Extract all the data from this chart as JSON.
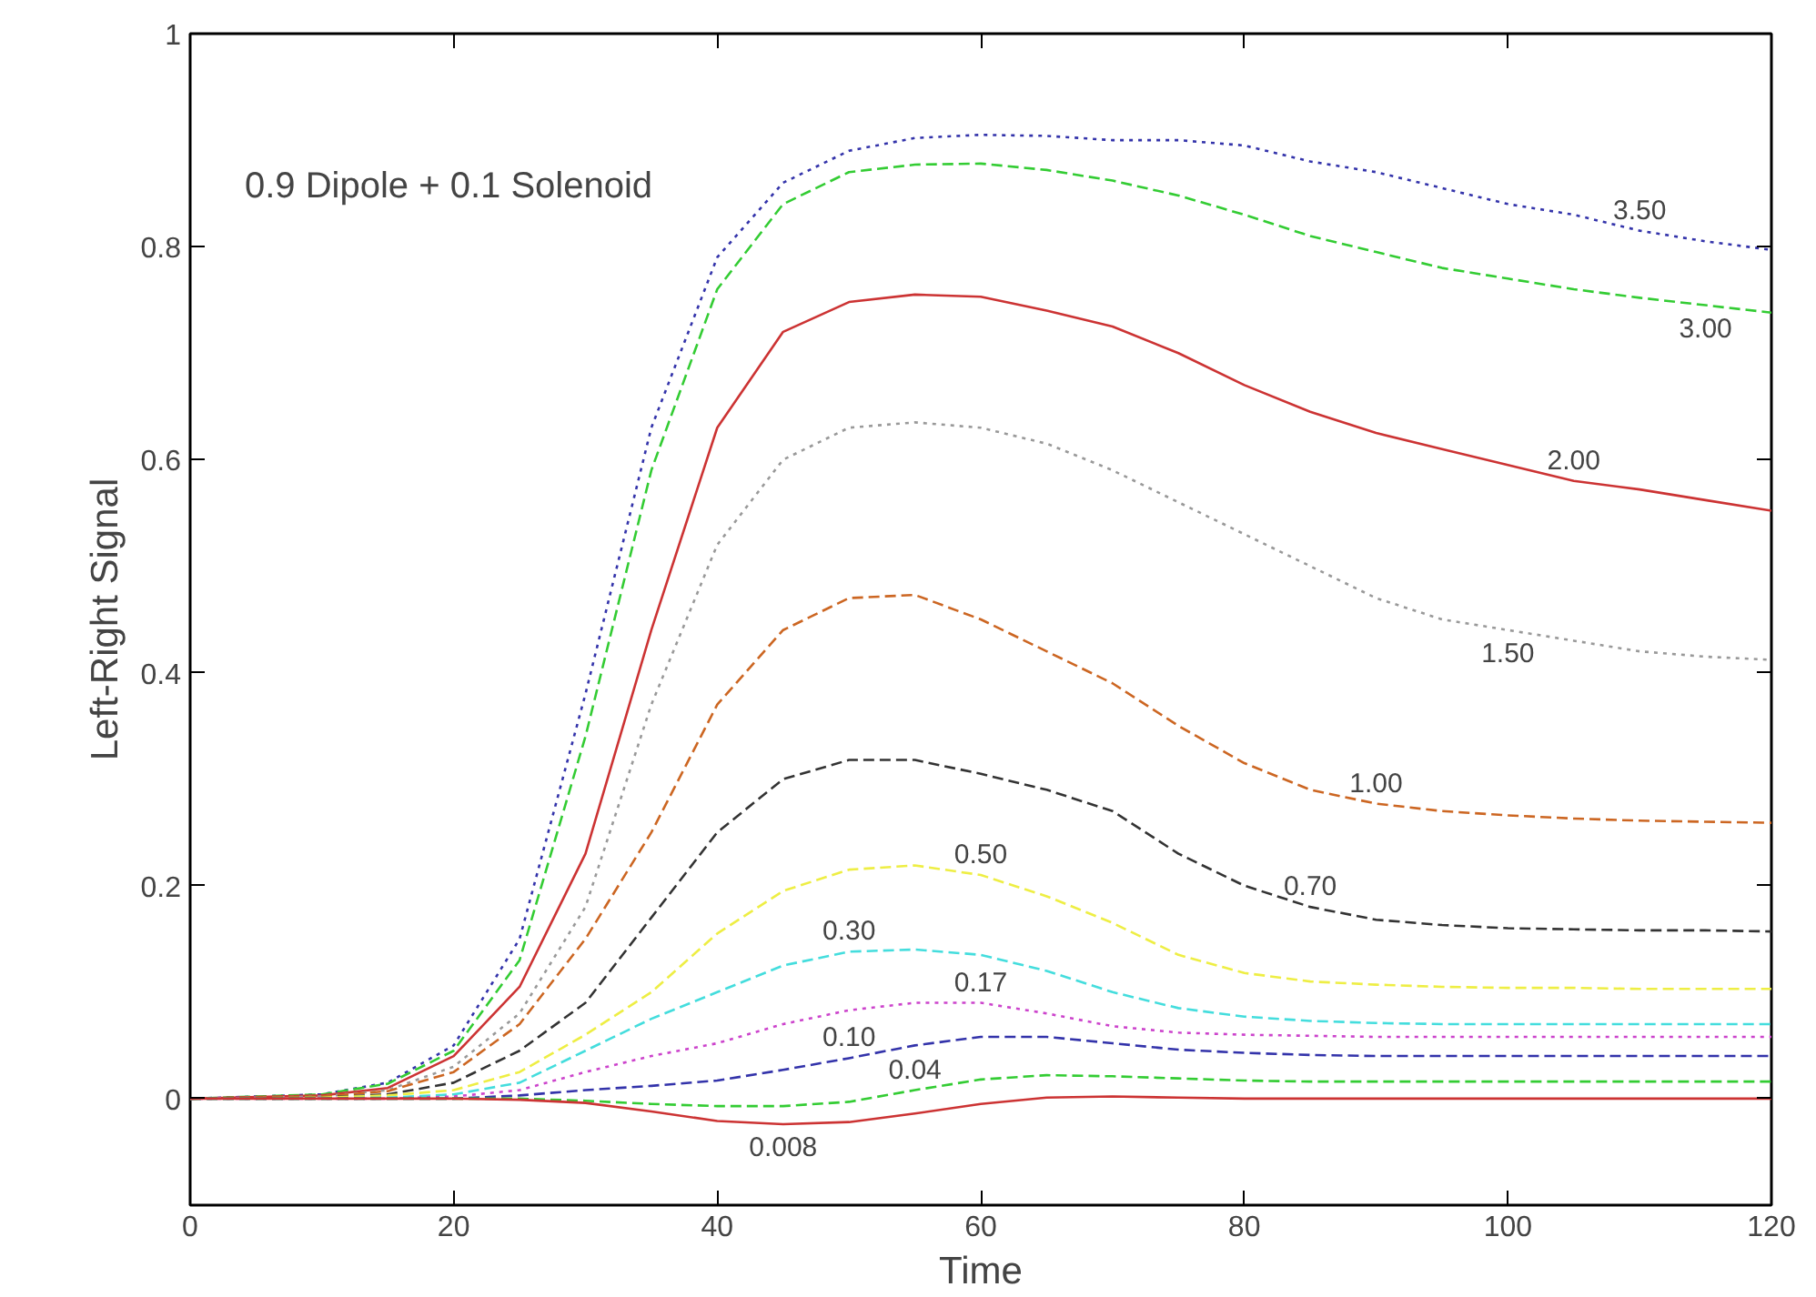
{
  "chart_data": {
    "type": "line",
    "xlabel": "Time",
    "ylabel": "Left-Right Signal",
    "x": [
      0,
      10,
      15,
      20,
      25,
      30,
      35,
      40,
      45,
      50,
      55,
      60,
      65,
      70,
      75,
      80,
      85,
      90,
      95,
      100,
      105,
      110,
      115,
      120
    ],
    "xlim": [
      0,
      120
    ],
    "ylim": [
      -0.1,
      1
    ],
    "xticks": [
      0,
      20,
      40,
      60,
      80,
      100,
      120
    ],
    "yticks": [
      0,
      0.2,
      0.4,
      0.6,
      0.8,
      1
    ],
    "grid": false,
    "marker": "none",
    "series": [
      {
        "color": "#3333aa",
        "line_style": "dotted",
        "values": [
          0,
          0.004,
          0.015,
          0.05,
          0.15,
          0.38,
          0.63,
          0.79,
          0.86,
          0.89,
          0.902,
          0.905,
          0.904,
          0.9,
          0.9,
          0.895,
          0.88,
          0.87,
          0.855,
          0.84,
          0.83,
          0.815,
          0.805,
          0.797
        ]
      },
      {
        "color": "#33cc33",
        "line_style": "dashed",
        "values": [
          0,
          0.004,
          0.014,
          0.045,
          0.13,
          0.34,
          0.59,
          0.76,
          0.84,
          0.87,
          0.877,
          0.878,
          0.872,
          0.862,
          0.848,
          0.83,
          0.81,
          0.795,
          0.78,
          0.77,
          0.76,
          0.752,
          0.745,
          0.738
        ]
      },
      {
        "color": "#cc3333",
        "line_style": "solid",
        "values": [
          0,
          0.003,
          0.01,
          0.04,
          0.105,
          0.23,
          0.44,
          0.63,
          0.72,
          0.748,
          0.755,
          0.753,
          0.74,
          0.725,
          0.7,
          0.67,
          0.645,
          0.625,
          0.61,
          0.595,
          0.58,
          0.572,
          0.562,
          0.552
        ]
      },
      {
        "color": "#999999",
        "line_style": "dotted",
        "values": [
          0,
          0.002,
          0.008,
          0.03,
          0.08,
          0.18,
          0.37,
          0.52,
          0.6,
          0.63,
          0.635,
          0.63,
          0.615,
          0.59,
          0.56,
          0.53,
          0.5,
          0.47,
          0.45,
          0.44,
          0.43,
          0.42,
          0.415,
          0.412
        ]
      },
      {
        "color": "#cc6622",
        "line_style": "dashed",
        "values": [
          0,
          0.002,
          0.007,
          0.025,
          0.07,
          0.15,
          0.25,
          0.37,
          0.44,
          0.47,
          0.473,
          0.45,
          0.42,
          0.39,
          0.35,
          0.315,
          0.29,
          0.277,
          0.27,
          0.266,
          0.263,
          0.261,
          0.26,
          0.259
        ]
      },
      {
        "color": "#333333",
        "line_style": "dashed",
        "values": [
          0,
          0.001,
          0.004,
          0.015,
          0.045,
          0.09,
          0.17,
          0.25,
          0.3,
          0.318,
          0.318,
          0.305,
          0.29,
          0.27,
          0.23,
          0.2,
          0.18,
          0.168,
          0.163,
          0.16,
          0.159,
          0.158,
          0.158,
          0.157
        ]
      },
      {
        "color": "#eeee44",
        "line_style": "dashed",
        "values": [
          0,
          0.001,
          0.003,
          0.008,
          0.025,
          0.06,
          0.1,
          0.155,
          0.195,
          0.215,
          0.219,
          0.21,
          0.19,
          0.165,
          0.135,
          0.118,
          0.11,
          0.107,
          0.105,
          0.104,
          0.104,
          0.103,
          0.103,
          0.103
        ]
      },
      {
        "color": "#44dddd",
        "line_style": "dashed",
        "values": [
          0,
          0,
          0.001,
          0.004,
          0.015,
          0.045,
          0.075,
          0.1,
          0.125,
          0.138,
          0.14,
          0.135,
          0.12,
          0.1,
          0.085,
          0.077,
          0.073,
          0.071,
          0.07,
          0.07,
          0.07,
          0.07,
          0.07,
          0.07
        ]
      },
      {
        "color": "#cc44cc",
        "line_style": "dotted",
        "values": [
          0,
          0,
          0,
          0.002,
          0.008,
          0.025,
          0.04,
          0.052,
          0.07,
          0.083,
          0.09,
          0.09,
          0.08,
          0.068,
          0.062,
          0.06,
          0.059,
          0.058,
          0.058,
          0.058,
          0.058,
          0.058,
          0.058,
          0.058
        ]
      },
      {
        "color": "#3333aa",
        "line_style": "dashed",
        "values": [
          0,
          0,
          0,
          0,
          0.003,
          0.008,
          0.012,
          0.017,
          0.027,
          0.038,
          0.05,
          0.058,
          0.058,
          0.052,
          0.046,
          0.043,
          0.041,
          0.04,
          0.04,
          0.04,
          0.04,
          0.04,
          0.04,
          0.04
        ]
      },
      {
        "color": "#33cc33",
        "line_style": "dashed",
        "values": [
          0,
          0,
          0,
          0,
          0,
          -0.002,
          -0.005,
          -0.007,
          -0.007,
          -0.003,
          0.008,
          0.018,
          0.022,
          0.021,
          0.019,
          0.017,
          0.016,
          0.016,
          0.016,
          0.016,
          0.016,
          0.016,
          0.016,
          0.016
        ]
      },
      {
        "color": "#cc3333",
        "line_style": "solid",
        "values": [
          0,
          0,
          0,
          0,
          -0.001,
          -0.004,
          -0.012,
          -0.021,
          -0.024,
          -0.022,
          -0.014,
          -0.005,
          0.001,
          0.002,
          0.001,
          0,
          0,
          0,
          0,
          0,
          0,
          0,
          0,
          0
        ]
      }
    ],
    "annotations": [
      "0.9 Dipole + 0.1 Solenoid",
      {
        "text": "3.50",
        "x": 110,
        "y": 0.815
      },
      {
        "text": "3.00",
        "x": 115,
        "y": 0.745
      },
      {
        "text": "2.00",
        "x": 105,
        "y": 0.58
      },
      {
        "text": "1.50",
        "x": 100,
        "y": 0.44
      },
      {
        "text": "1.00",
        "x": 90,
        "y": 0.277
      },
      {
        "text": "0.70",
        "x": 85,
        "y": 0.18
      },
      {
        "text": "0.50",
        "x": 60,
        "y": 0.21
      },
      {
        "text": "0.30",
        "x": 50,
        "y": 0.138
      },
      {
        "text": "0.17",
        "x": 60,
        "y": 0.09
      },
      {
        "text": "0.10",
        "x": 50,
        "y": 0.038
      },
      {
        "text": "0.04",
        "x": 55,
        "y": 0.008
      },
      {
        "text": "0.008",
        "x": 45,
        "y": -0.024
      }
    ]
  }
}
